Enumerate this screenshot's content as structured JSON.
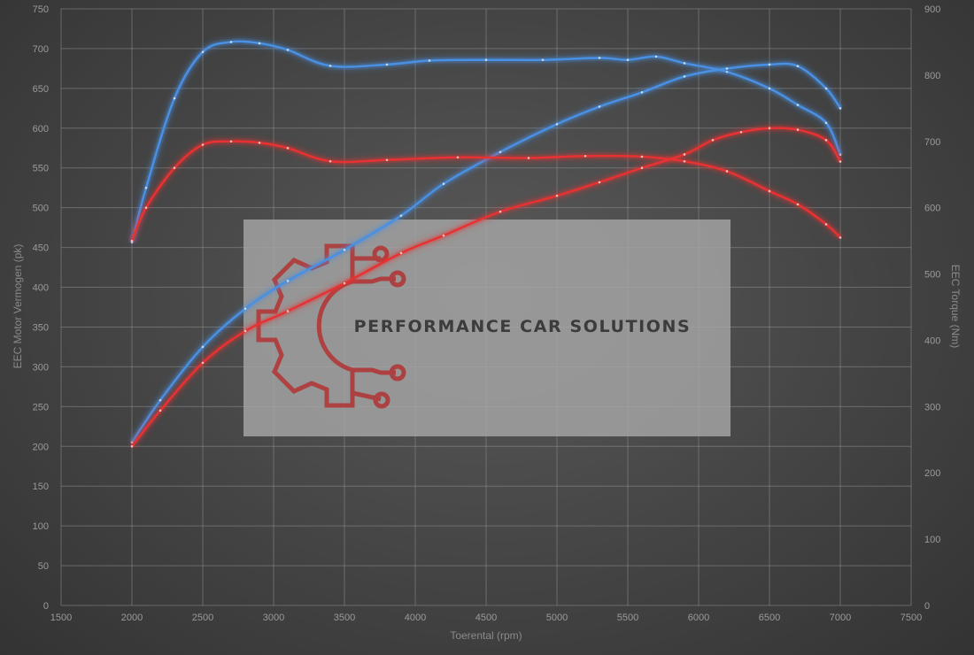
{
  "chart_data": {
    "type": "line",
    "xlabel": "Toerental (rpm)",
    "ylabel_left": "EEC Motor Vermogen (pk)",
    "ylabel_right": "EEC Torque (Nm)",
    "xlim": [
      1500,
      7500
    ],
    "ylim_left": [
      0,
      750
    ],
    "ylim_right": [
      0,
      900
    ],
    "x_ticks": [
      1500,
      2000,
      2500,
      3000,
      3500,
      4000,
      4500,
      5000,
      5500,
      6000,
      6500,
      7000,
      7500
    ],
    "y_left_ticks": [
      0,
      50,
      100,
      150,
      200,
      250,
      300,
      350,
      400,
      450,
      500,
      550,
      600,
      650,
      700,
      750
    ],
    "y_right_ticks": [
      0,
      100,
      200,
      300,
      400,
      500,
      600,
      700,
      800,
      900
    ],
    "grid": true,
    "legend": "none",
    "series": [
      {
        "axis": "right",
        "color": "#4a90e2",
        "x": [
          2000,
          2100,
          2300,
          2500,
          2700,
          2900,
          3100,
          3400,
          3800,
          4100,
          4500,
          4900,
          5300,
          5500,
          5700,
          5900,
          6200,
          6500,
          6700,
          6900,
          7000
        ],
        "values": [
          548,
          630,
          765,
          835,
          850,
          848,
          838,
          814,
          816,
          822,
          823,
          823,
          826,
          823,
          828,
          818,
          805,
          780,
          755,
          728,
          680
        ]
      },
      {
        "axis": "left",
        "color": "#4a90e2",
        "x": [
          2000,
          2200,
          2500,
          2800,
          3100,
          3500,
          3900,
          4200,
          4600,
          5000,
          5300,
          5600,
          5900,
          6200,
          6500,
          6700,
          6900,
          7000
        ],
        "values": [
          205,
          258,
          325,
          373,
          408,
          447,
          490,
          530,
          570,
          605,
          627,
          645,
          665,
          675,
          680,
          678,
          650,
          625
        ]
      },
      {
        "axis": "right",
        "color": "#e63232",
        "x": [
          2000,
          2100,
          2300,
          2500,
          2700,
          2900,
          3100,
          3400,
          3800,
          4300,
          4800,
          5200,
          5600,
          5900,
          6200,
          6500,
          6700,
          6900,
          7000
        ],
        "values": [
          550,
          600,
          660,
          695,
          700,
          698,
          690,
          670,
          672,
          676,
          675,
          678,
          677,
          670,
          655,
          625,
          605,
          575,
          555
        ]
      },
      {
        "axis": "left",
        "color": "#e63232",
        "x": [
          2000,
          2200,
          2500,
          2800,
          3100,
          3500,
          3900,
          4200,
          4600,
          5000,
          5300,
          5600,
          5900,
          6100,
          6300,
          6500,
          6700,
          6900,
          7000
        ],
        "values": [
          200,
          245,
          305,
          345,
          370,
          405,
          443,
          465,
          495,
          515,
          532,
          550,
          567,
          585,
          595,
          600,
          598,
          585,
          558
        ]
      }
    ]
  },
  "watermark": {
    "text": "PERFORMANCE CAR SOLUTIONS",
    "logo_icon": "gear-circuit-icon",
    "logo_color": "#b03838"
  }
}
